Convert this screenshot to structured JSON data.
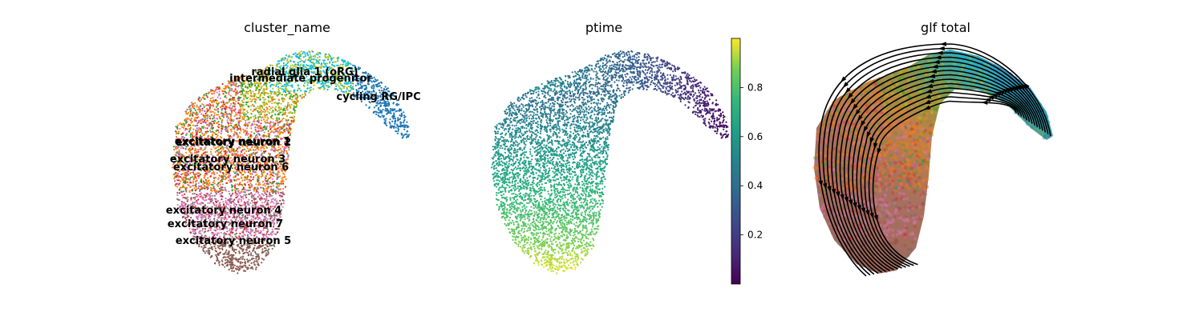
{
  "chart_data": [
    {
      "type": "scatter",
      "title": "cluster_name",
      "labels": [
        {
          "text": "radial glia 1 (oRG)",
          "x": 380,
          "y": 90
        },
        {
          "text": "intermediate progenitor",
          "x": 375,
          "y": 98
        },
        {
          "text": "cycling RG/IPC",
          "x": 472,
          "y": 121
        },
        {
          "text": "excitatory neuron 1",
          "x": 290,
          "y": 177
        },
        {
          "text": "excitatory neuron 2",
          "x": 291,
          "y": 178
        },
        {
          "text": "excitatory neuron 3",
          "x": 284,
          "y": 199
        },
        {
          "text": "excitatory neuron 6",
          "x": 288,
          "y": 209
        },
        {
          "text": "excitatory neuron 4",
          "x": 279,
          "y": 263
        },
        {
          "text": "excitatory neuron 7",
          "x": 281,
          "y": 280
        },
        {
          "text": "excitatory neuron 5",
          "x": 291,
          "y": 301
        }
      ],
      "palette": {
        "radial glia 1 (oRG)": "#17becf",
        "intermediate progenitor": "#bcbd22",
        "cycling RG/IPC": "#1f77b4",
        "excitatory neuron 1": "#ff7f0e",
        "excitatory neuron 2": "#2ca02c",
        "excitatory neuron 3": "#d62728",
        "excitatory neuron 4": "#e377c2",
        "excitatory neuron 5": "#8c564b",
        "excitatory neuron 6": "#9467bd",
        "excitatory neuron 7": "#7f7f7f"
      }
    },
    {
      "type": "scatter",
      "title": "ptime",
      "colorbar": {
        "colormap": "viridis",
        "range": [
          0.0,
          1.0
        ],
        "ticks": [
          0.2,
          0.4,
          0.6,
          0.8
        ],
        "tick_labels": [
          "0.2",
          "0.4",
          "0.6",
          "0.8"
        ]
      }
    },
    {
      "type": "scatter",
      "title": "glf total",
      "overlay": "streamlines",
      "streamline_color": "#000000"
    }
  ]
}
